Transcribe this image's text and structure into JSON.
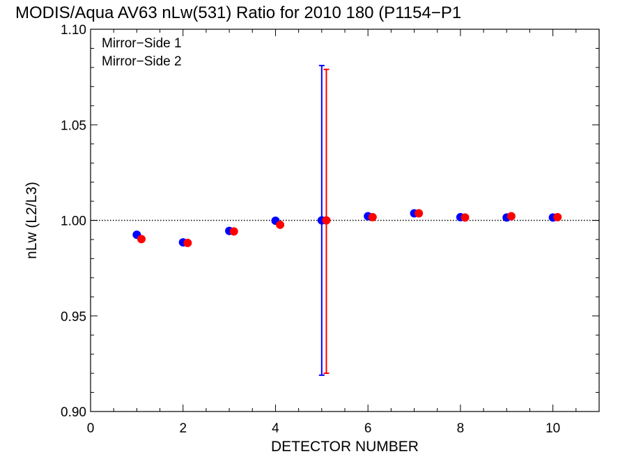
{
  "chart_data": {
    "type": "scatter",
    "title": "MODIS/Aqua AV63 nLw(531) Ratio for 2010 180 (P1154−P1",
    "xlabel": "DETECTOR NUMBER",
    "ylabel": "nLw (L2/L3)",
    "xlim": [
      0,
      11
    ],
    "ylim": [
      0.9,
      1.1
    ],
    "x_ticks": [
      0,
      2,
      4,
      6,
      8,
      10
    ],
    "x_tick_labels": [
      "0",
      "2",
      "4",
      "6",
      "8",
      "10"
    ],
    "y_ticks": [
      0.9,
      0.95,
      1.0,
      1.05,
      1.1
    ],
    "y_tick_labels": [
      "0.90",
      "0.95",
      "1.00",
      "1.05",
      "1.10"
    ],
    "reference_line": 1.0,
    "legend_placement": "top-left",
    "series": [
      {
        "name": "Mirror−Side 1",
        "color": "#0000ff",
        "x": [
          1,
          2,
          3,
          4,
          5,
          6,
          7,
          8,
          9,
          10
        ],
        "y": [
          0.9925,
          0.9885,
          0.9945,
          0.9998,
          1.0,
          1.0022,
          1.0037,
          1.0017,
          1.0015,
          1.0015
        ],
        "error_bars": [
          {
            "x": 5,
            "low": 0.919,
            "high": 1.081
          }
        ]
      },
      {
        "name": "Mirror−Side 2",
        "color": "#ff0000",
        "x": [
          1.1,
          2.1,
          3.1,
          4.1,
          5.1,
          6.1,
          7.1,
          8.1,
          9.1,
          10.1
        ],
        "y": [
          0.9902,
          0.9882,
          0.9942,
          0.9977,
          1.0,
          1.0017,
          1.0037,
          1.0015,
          1.0022,
          1.0017
        ],
        "error_bars": [
          {
            "x": 5.1,
            "low": 0.92,
            "high": 1.079
          }
        ]
      }
    ]
  }
}
